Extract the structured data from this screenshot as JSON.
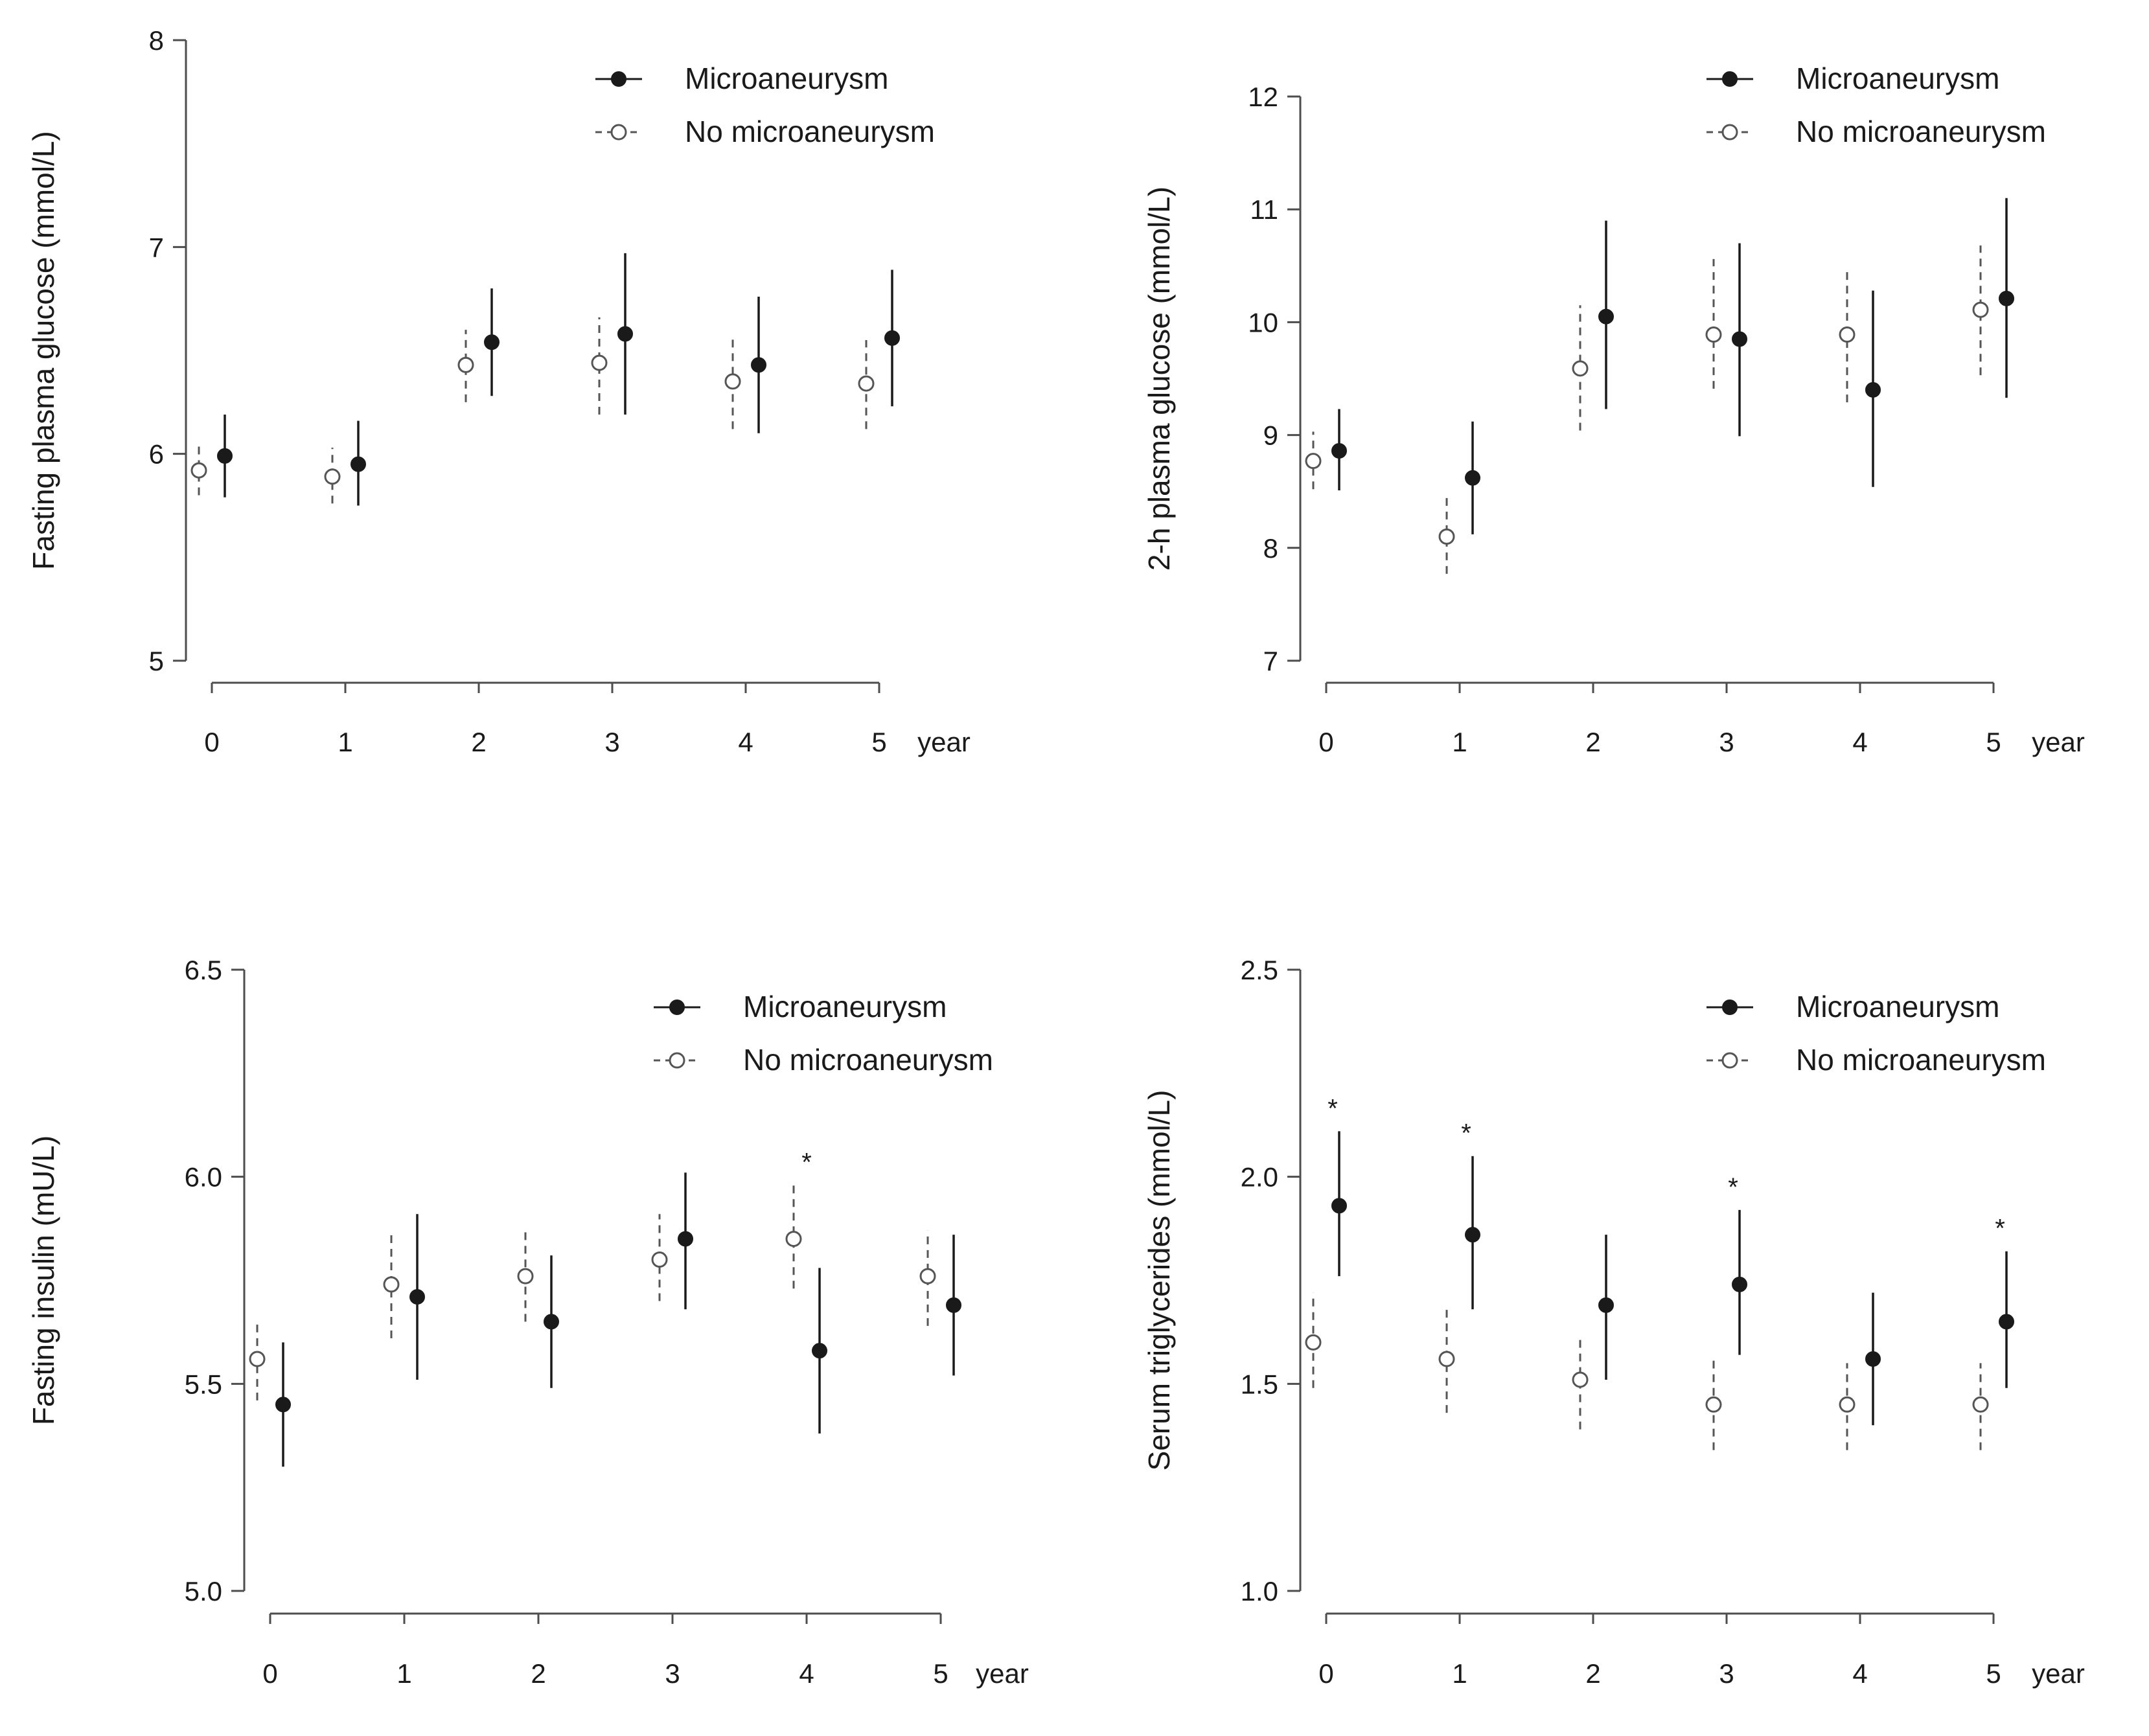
{
  "figure": {
    "x_unit_label": "year",
    "legend_labels": [
      "Microaneurysm",
      "No microaneurysm"
    ]
  },
  "chart_data": [
    {
      "type": "scatter",
      "id": "fasting-plasma-glucose",
      "ylabel": "Fasting plasma glucose (mmol/L)",
      "xlabel": "year",
      "categories": [
        "0",
        "1",
        "2",
        "3",
        "4",
        "5"
      ],
      "ylim": [
        5,
        8
      ],
      "yticks": [
        5,
        6,
        7,
        8
      ],
      "ytick_labels": [
        "5",
        "6",
        "7",
        "8"
      ],
      "legend_position": "top-right",
      "series": [
        {
          "name": "Microaneurysm",
          "marker": "filled-circle",
          "error_style": "solid",
          "values": [
            5.99,
            5.95,
            6.54,
            6.58,
            6.43,
            6.56
          ],
          "lower": [
            5.79,
            5.75,
            6.28,
            6.19,
            6.1,
            6.23
          ],
          "upper": [
            6.19,
            6.16,
            6.8,
            6.97,
            6.76,
            6.89
          ]
        },
        {
          "name": "No microaneurysm",
          "marker": "open-circle",
          "error_style": "dashed",
          "values": [
            5.92,
            5.89,
            6.43,
            6.44,
            6.35,
            6.34
          ],
          "lower": [
            5.8,
            5.76,
            6.25,
            6.19,
            6.12,
            6.12
          ],
          "upper": [
            6.06,
            6.03,
            6.6,
            6.66,
            6.57,
            6.55
          ]
        }
      ],
      "annotations": []
    },
    {
      "type": "scatter",
      "id": "two-hour-plasma-glucose",
      "ylabel": "2-h plasma glucose (mmol/L)",
      "xlabel": "year",
      "categories": [
        "0",
        "1",
        "2",
        "3",
        "4",
        "5"
      ],
      "ylim": [
        7,
        12
      ],
      "yticks": [
        7,
        8,
        9,
        10,
        11,
        12
      ],
      "ytick_labels": [
        "7",
        "8",
        "9",
        "10",
        "11",
        "12"
      ],
      "legend_position": "top-right",
      "series": [
        {
          "name": "Microaneurysm",
          "marker": "filled-circle",
          "error_style": "solid",
          "values": [
            8.86,
            8.62,
            10.05,
            9.85,
            9.4,
            10.21
          ],
          "lower": [
            8.51,
            8.12,
            9.23,
            8.99,
            8.54,
            9.33
          ],
          "upper": [
            9.23,
            9.12,
            10.9,
            10.7,
            10.28,
            11.1
          ]
        },
        {
          "name": "No microaneurysm",
          "marker": "open-circle",
          "error_style": "dashed",
          "values": [
            8.77,
            8.1,
            9.59,
            9.89,
            9.89,
            10.11
          ],
          "lower": [
            8.52,
            7.77,
            9.04,
            9.41,
            9.29,
            9.53
          ],
          "upper": [
            9.03,
            8.45,
            10.15,
            10.56,
            10.46,
            10.68
          ]
        }
      ],
      "annotations": []
    },
    {
      "type": "scatter",
      "id": "fasting-insulin",
      "ylabel": "Fasting insulin (mU/L)",
      "xlabel": "year",
      "categories": [
        "0",
        "1",
        "2",
        "3",
        "4",
        "5"
      ],
      "ylim": [
        5.0,
        6.5
      ],
      "yticks": [
        5.0,
        5.5,
        6.0,
        6.5
      ],
      "ytick_labels": [
        "5.0",
        "5.5",
        "6.0",
        "6.5"
      ],
      "legend_position": "top-right",
      "series": [
        {
          "name": "Microaneurysm",
          "marker": "filled-circle",
          "error_style": "solid",
          "values": [
            5.45,
            5.71,
            5.65,
            5.85,
            5.58,
            5.69
          ],
          "lower": [
            5.3,
            5.51,
            5.49,
            5.68,
            5.38,
            5.52
          ],
          "upper": [
            5.6,
            5.91,
            5.81,
            6.01,
            5.78,
            5.86
          ]
        },
        {
          "name": "No microaneurysm",
          "marker": "open-circle",
          "error_style": "dashed",
          "values": [
            5.56,
            5.74,
            5.76,
            5.8,
            5.85,
            5.76
          ],
          "lower": [
            5.46,
            5.61,
            5.65,
            5.7,
            5.73,
            5.64
          ],
          "upper": [
            5.65,
            5.87,
            5.87,
            5.91,
            5.98,
            5.87
          ]
        }
      ],
      "annotations": [
        {
          "category": "4",
          "text": "*"
        }
      ]
    },
    {
      "type": "scatter",
      "id": "serum-triglycerides",
      "ylabel": "Serum triglycerides (mmol/L)",
      "xlabel": "year",
      "categories": [
        "0",
        "1",
        "2",
        "3",
        "4",
        "5"
      ],
      "ylim": [
        1.0,
        2.5
      ],
      "yticks": [
        1.0,
        1.5,
        2.0,
        2.5
      ],
      "ytick_labels": [
        "1.0",
        "1.5",
        "2.0",
        "2.5"
      ],
      "legend_position": "top-right",
      "series": [
        {
          "name": "Microaneurysm",
          "marker": "filled-circle",
          "error_style": "solid",
          "values": [
            1.93,
            1.86,
            1.69,
            1.74,
            1.56,
            1.65
          ],
          "lower": [
            1.76,
            1.68,
            1.51,
            1.57,
            1.4,
            1.49
          ],
          "upper": [
            2.11,
            2.05,
            1.86,
            1.92,
            1.72,
            1.82
          ]
        },
        {
          "name": "No microaneurysm",
          "marker": "open-circle",
          "error_style": "dashed",
          "values": [
            1.6,
            1.56,
            1.51,
            1.45,
            1.45,
            1.45
          ],
          "lower": [
            1.49,
            1.43,
            1.39,
            1.34,
            1.34,
            1.34
          ],
          "upper": [
            1.72,
            1.68,
            1.62,
            1.57,
            1.55,
            1.55
          ]
        }
      ],
      "annotations": [
        {
          "category": "0",
          "text": "*"
        },
        {
          "category": "1",
          "text": "*"
        },
        {
          "category": "3",
          "text": "*"
        },
        {
          "category": "5",
          "text": "*"
        }
      ]
    }
  ]
}
